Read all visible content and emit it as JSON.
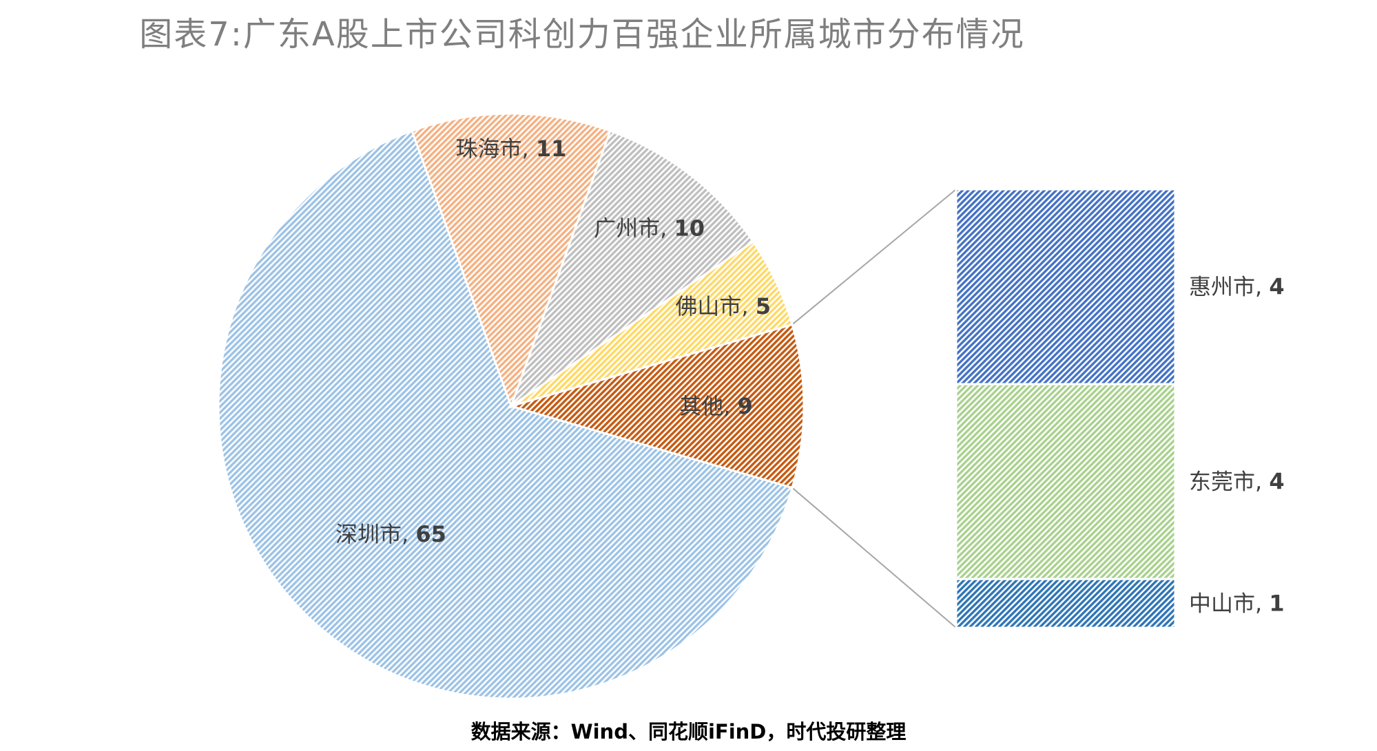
{
  "chart_data": {
    "type": "pie",
    "subtype": "bar-of-pie",
    "title": "图表7:广东A股上市公司科创力百强企业所属城市分布情况",
    "source": "数据来源：Wind、同花顺iFinD，时代投研整理",
    "pie": [
      {
        "name": "深圳市",
        "value": 65,
        "color": "#9dc3e6"
      },
      {
        "name": "珠海市",
        "value": 11,
        "color": "#f4b183"
      },
      {
        "name": "广州市",
        "value": 10,
        "color": "#bfbfbf"
      },
      {
        "name": "佛山市",
        "value": 5,
        "color": "#ffd966"
      },
      {
        "name": "其他",
        "value": 9,
        "color": "#c55a11"
      }
    ],
    "breakdown": {
      "of": "其他",
      "items": [
        {
          "name": "惠州市",
          "value": 4,
          "color": "#4472c4"
        },
        {
          "name": "东莞市",
          "value": 4,
          "color": "#a9d18e"
        },
        {
          "name": "中山市",
          "value": 1,
          "color": "#2e75b6"
        }
      ]
    },
    "label_separator": ", "
  }
}
